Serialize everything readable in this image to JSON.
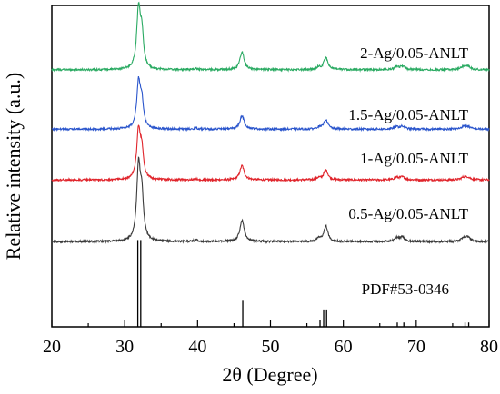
{
  "chart_data": {
    "type": "line",
    "xlabel": "2θ (Degree)",
    "ylabel": "Relative intensity (a.u.)",
    "xlim": [
      20,
      80
    ],
    "xticks": [
      "20",
      "30",
      "40",
      "50",
      "60",
      "70",
      "80"
    ],
    "y_ticks_shown": false,
    "grid": false,
    "peaks": [
      {
        "pos": 31.9,
        "rel": 1.0,
        "w": 0.3
      },
      {
        "pos": 32.35,
        "rel": 0.55,
        "w": 0.28
      },
      {
        "pos": 39.8,
        "rel": 0.02,
        "w": 0.3
      },
      {
        "pos": 46.1,
        "rel": 0.3,
        "w": 0.35
      },
      {
        "pos": 56.6,
        "rel": 0.04,
        "w": 0.3
      },
      {
        "pos": 57.6,
        "rel": 0.21,
        "w": 0.35
      },
      {
        "pos": 67.3,
        "rel": 0.05,
        "w": 0.35
      },
      {
        "pos": 68.1,
        "rel": 0.06,
        "w": 0.4
      },
      {
        "pos": 76.5,
        "rel": 0.05,
        "w": 0.4
      },
      {
        "pos": 77.1,
        "rel": 0.05,
        "w": 0.4
      }
    ],
    "series": [
      {
        "name": "2-Ag/0.05-ANLT",
        "color": "#2aaa62",
        "baseline": 0.8,
        "max_height": 0.182
      },
      {
        "name": "1.5-Ag/0.05-ANLT",
        "color": "#2a55cc",
        "baseline": 0.615,
        "max_height": 0.14
      },
      {
        "name": "1-Ag/0.05-ANLT",
        "color": "#e0242b",
        "baseline": 0.457,
        "max_height": 0.148
      },
      {
        "name": "0.5-Ag/0.05-ANLT",
        "color": "#3a3a3a",
        "baseline": 0.265,
        "max_height": 0.226
      }
    ],
    "reference": {
      "name": "PDF#53-0346",
      "color": "#000000",
      "lines": [
        {
          "pos": 31.8,
          "rel": 1.0
        },
        {
          "pos": 32.2,
          "rel": 1.0
        },
        {
          "pos": 46.2,
          "rel": 0.3
        },
        {
          "pos": 56.8,
          "rel": 0.08
        },
        {
          "pos": 57.3,
          "rel": 0.2
        },
        {
          "pos": 57.7,
          "rel": 0.2
        },
        {
          "pos": 67.4,
          "rel": 0.05
        },
        {
          "pos": 68.3,
          "rel": 0.05
        },
        {
          "pos": 76.7,
          "rel": 0.05
        },
        {
          "pos": 77.2,
          "rel": 0.05
        }
      ]
    }
  }
}
